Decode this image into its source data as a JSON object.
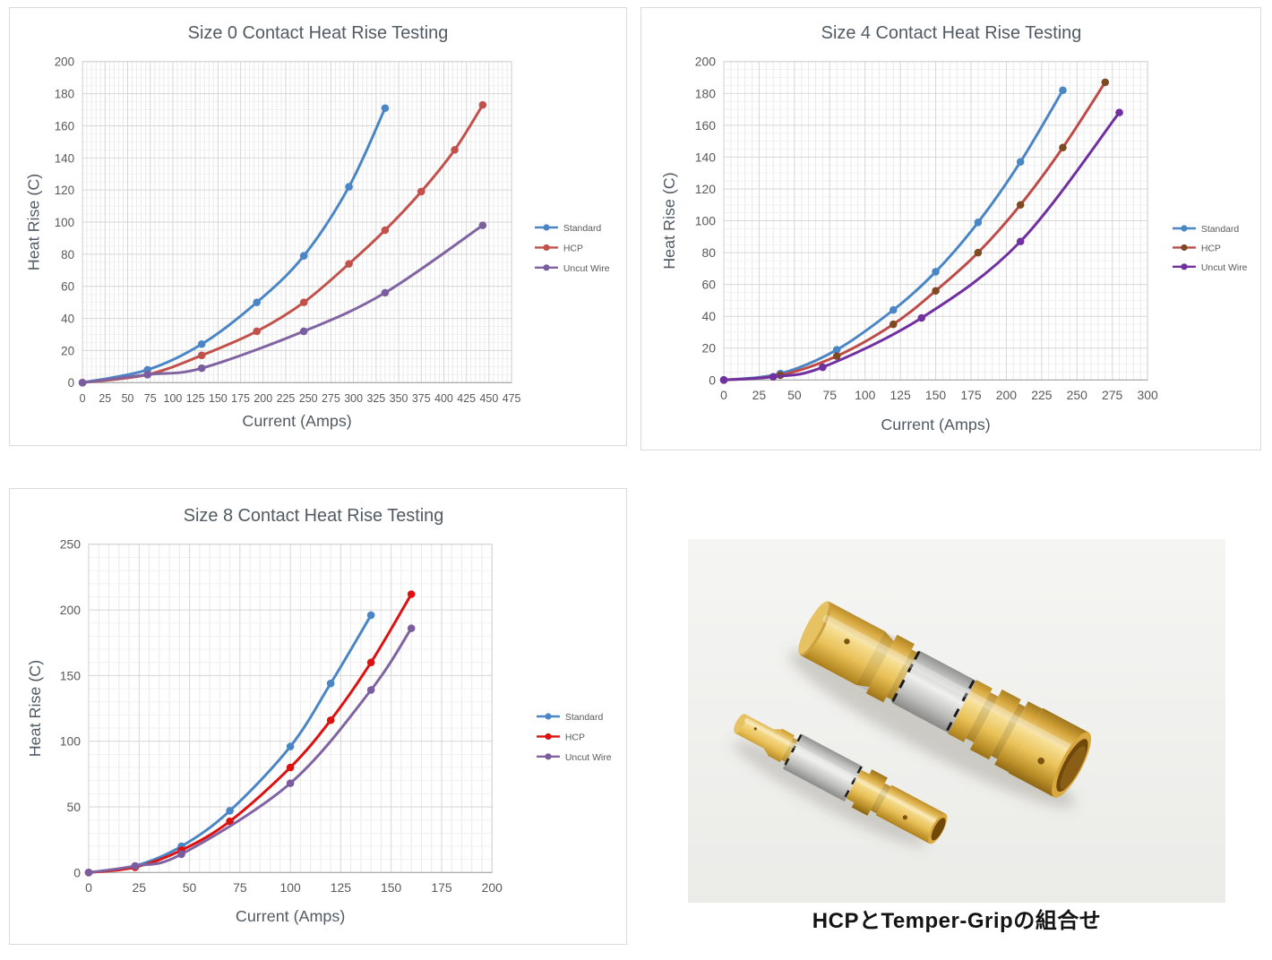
{
  "page": {
    "background": "#ffffff"
  },
  "chart_data": [
    {
      "type": "line",
      "title": "Size 0 Contact Heat Rise Testing",
      "xlabel": "Current (Amps)",
      "ylabel": "Heat Rise (C)",
      "xlim": [
        0,
        475
      ],
      "ylim": [
        0,
        200
      ],
      "xticks": [
        0,
        25,
        50,
        75,
        100,
        125,
        150,
        175,
        200,
        225,
        250,
        275,
        300,
        325,
        350,
        375,
        400,
        425,
        450,
        475
      ],
      "yticks": [
        0,
        20,
        40,
        60,
        80,
        100,
        120,
        140,
        160,
        180,
        200
      ],
      "x_minor_step": 5,
      "y_minor_step": 5,
      "grid": true,
      "legend_position": "right",
      "series": [
        {
          "name": "Standard",
          "color": "#4A86C6",
          "marker_color": "#4A86C6",
          "points": [
            [
              0,
              0
            ],
            [
              72,
              8
            ],
            [
              132,
              24
            ],
            [
              193,
              50
            ],
            [
              245,
              79
            ],
            [
              295,
              122
            ],
            [
              335,
              171
            ]
          ]
        },
        {
          "name": "HCP",
          "color": "#C2504B",
          "marker_color": "#C2504B",
          "points": [
            [
              0,
              0
            ],
            [
              72,
              5
            ],
            [
              132,
              17
            ],
            [
              193,
              32
            ],
            [
              245,
              50
            ],
            [
              295,
              74
            ],
            [
              335,
              95
            ],
            [
              375,
              119
            ],
            [
              412,
              145
            ],
            [
              443,
              173
            ]
          ]
        },
        {
          "name": "Uncut Wire",
          "color": "#8064A2",
          "marker_color": "#7A5DA0",
          "points": [
            [
              0,
              0
            ],
            [
              72,
              5
            ],
            [
              132,
              9
            ],
            [
              245,
              32
            ],
            [
              335,
              56
            ],
            [
              443,
              98
            ]
          ]
        }
      ]
    },
    {
      "type": "line",
      "title": "Size 4 Contact Heat Rise Testing",
      "xlabel": "Current (Amps)",
      "ylabel": "Heat Rise (C)",
      "xlim": [
        0,
        300
      ],
      "ylim": [
        0,
        200
      ],
      "xticks": [
        0,
        25,
        50,
        75,
        100,
        125,
        150,
        175,
        200,
        225,
        250,
        275,
        300
      ],
      "yticks": [
        0,
        20,
        40,
        60,
        80,
        100,
        120,
        140,
        160,
        180,
        200
      ],
      "x_minor_step": 5,
      "y_minor_step": 5,
      "grid": true,
      "legend_position": "right",
      "series": [
        {
          "name": "Standard",
          "color": "#4A86C6",
          "marker_color": "#4A86C6",
          "points": [
            [
              0,
              0
            ],
            [
              40,
              4
            ],
            [
              80,
              19
            ],
            [
              120,
              44
            ],
            [
              150,
              68
            ],
            [
              180,
              99
            ],
            [
              210,
              137
            ],
            [
              240,
              182
            ]
          ]
        },
        {
          "name": "HCP",
          "color": "#BE4B48",
          "marker_color": "#7E4A21",
          "points": [
            [
              0,
              0
            ],
            [
              40,
              3
            ],
            [
              80,
              15
            ],
            [
              120,
              35
            ],
            [
              150,
              56
            ],
            [
              180,
              80
            ],
            [
              210,
              110
            ],
            [
              240,
              146
            ],
            [
              270,
              187
            ]
          ]
        },
        {
          "name": "Uncut Wire",
          "color": "#7030A0",
          "marker_color": "#7030A0",
          "points": [
            [
              0,
              0
            ],
            [
              35,
              2
            ],
            [
              70,
              8
            ],
            [
              140,
              39
            ],
            [
              210,
              87
            ],
            [
              280,
              168
            ]
          ]
        }
      ]
    },
    {
      "type": "line",
      "title": "Size 8 Contact Heat Rise Testing",
      "xlabel": "Current (Amps)",
      "ylabel": "Heat Rise (C)",
      "xlim": [
        0,
        200
      ],
      "ylim": [
        0,
        250
      ],
      "xticks": [
        0,
        25,
        50,
        75,
        100,
        125,
        150,
        175,
        200
      ],
      "yticks": [
        0,
        50,
        100,
        150,
        200,
        250
      ],
      "x_minor_step": 5,
      "y_minor_step": 10,
      "grid": true,
      "legend_position": "right",
      "series": [
        {
          "name": "Standard",
          "color": "#4A86C6",
          "marker_color": "#4A86C6",
          "points": [
            [
              0,
              0
            ],
            [
              23,
              5
            ],
            [
              46,
              20
            ],
            [
              70,
              47
            ],
            [
              100,
              96
            ],
            [
              120,
              144
            ],
            [
              140,
              196
            ]
          ]
        },
        {
          "name": "HCP",
          "color": "#DE1111",
          "marker_color": "#DE1111",
          "points": [
            [
              0,
              0
            ],
            [
              23,
              4
            ],
            [
              46,
              17
            ],
            [
              70,
              39
            ],
            [
              100,
              80
            ],
            [
              120,
              116
            ],
            [
              140,
              160
            ],
            [
              160,
              212
            ]
          ]
        },
        {
          "name": "Uncut Wire",
          "color": "#8064A2",
          "marker_color": "#7A5DA0",
          "points": [
            [
              0,
              0
            ],
            [
              23,
              5
            ],
            [
              46,
              14
            ],
            [
              100,
              68
            ],
            [
              140,
              139
            ],
            [
              160,
              186
            ]
          ]
        }
      ]
    }
  ],
  "photo": {
    "caption": "HCPとTemper-Gripの組合せ",
    "background": "#f1f1ef",
    "gold_color": "#E2B44C",
    "silver_color": "#C9C9C6"
  }
}
